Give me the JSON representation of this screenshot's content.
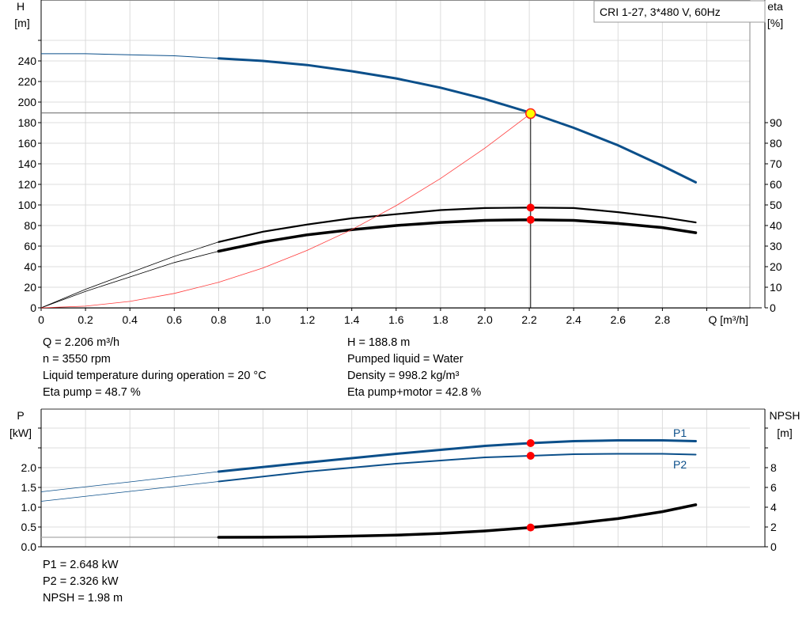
{
  "chart_data": [
    {
      "type": "line",
      "legend_box": "CRI 1-27, 3*480 V, 60Hz",
      "xlabel": "Q [m³/h]",
      "ylabel_left": "H",
      "ylabel_left_unit": "[m]",
      "ylabel_right": "eta",
      "ylabel_right_unit": "[%]",
      "xlim": [
        0,
        3.2
      ],
      "ylim_left": [
        0,
        260
      ],
      "ylim_right": [
        0,
        130
      ],
      "grid": true,
      "x_ticks": [
        "0",
        "0.2",
        "0.4",
        "0.6",
        "0.8",
        "1.0",
        "1.2",
        "1.4",
        "1.6",
        "1.8",
        "2.0",
        "2.2",
        "2.4",
        "2.6",
        "2.8"
      ],
      "y_left_ticks": [
        "0",
        "20",
        "40",
        "60",
        "80",
        "100",
        "120",
        "140",
        "160",
        "180",
        "200",
        "220",
        "240"
      ],
      "y_right_ticks": [
        "0",
        "10",
        "20",
        "30",
        "40",
        "50",
        "60",
        "70",
        "80",
        "90"
      ],
      "duty_point": {
        "Q": 2.206,
        "H": 188.8,
        "eta_pump": 48.7,
        "eta_total": 42.8
      },
      "series": [
        {
          "key": "H",
          "axis": "left",
          "color": "#0b4f8a",
          "x": [
            0,
            0.2,
            0.4,
            0.6,
            0.8,
            1.0,
            1.2,
            1.4,
            1.6,
            1.8,
            2.0,
            2.2,
            2.4,
            2.6,
            2.8,
            2.95
          ],
          "y": [
            247,
            247,
            246,
            245,
            242.5,
            240,
            236,
            230,
            223,
            214,
            203,
            190,
            175,
            158,
            138,
            122
          ]
        },
        {
          "key": "eta_pump",
          "axis": "right",
          "color": "#000000",
          "x": [
            0,
            0.2,
            0.4,
            0.6,
            0.8,
            1.0,
            1.2,
            1.4,
            1.6,
            1.8,
            2.0,
            2.2,
            2.4,
            2.6,
            2.8,
            2.95
          ],
          "y": [
            0,
            9,
            17,
            25,
            32,
            37,
            40.5,
            43.5,
            45.5,
            47.5,
            48.5,
            48.7,
            48.5,
            46.5,
            44,
            41.5
          ]
        },
        {
          "key": "eta_total",
          "axis": "right",
          "color": "#000000",
          "x": [
            0,
            0.2,
            0.4,
            0.6,
            0.8,
            1.0,
            1.2,
            1.4,
            1.6,
            1.8,
            2.0,
            2.2,
            2.4,
            2.6,
            2.8,
            2.95
          ],
          "y": [
            0,
            8,
            15,
            22,
            27.5,
            32,
            35.5,
            38,
            40,
            41.5,
            42.5,
            42.8,
            42.5,
            41,
            39,
            36.5
          ]
        },
        {
          "key": "system",
          "axis": "left",
          "color": "#ff3b3b",
          "x": [
            0,
            0.2,
            0.4,
            0.6,
            0.8,
            1.0,
            1.2,
            1.4,
            1.6,
            1.8,
            2.0,
            2.206
          ],
          "y": [
            0,
            1.6,
            6.2,
            14,
            24.8,
            38.8,
            55.9,
            76,
            99.3,
            125.7,
            155.2,
            188.8
          ]
        }
      ]
    },
    {
      "type": "line",
      "ylabel_left": "P",
      "ylabel_left_unit": "[kW]",
      "ylabel_right": "NPSH",
      "ylabel_right_unit": "[m]",
      "xlim": [
        0,
        3.2
      ],
      "ylim_left": [
        0,
        3.5
      ],
      "ylim_right": [
        0,
        14
      ],
      "grid": true,
      "y_left_ticks": [
        "0.0",
        "0.5",
        "1.0",
        "1.5",
        "2.0"
      ],
      "y_right_ticks": [
        "0",
        "2",
        "4",
        "6",
        "8"
      ],
      "series": [
        {
          "key": "P1",
          "name": "P1",
          "axis": "left",
          "color": "#0b4f8a",
          "x": [
            0,
            0.4,
            0.8,
            1.2,
            1.6,
            2.0,
            2.206,
            2.4,
            2.6,
            2.8,
            2.95
          ],
          "y": [
            1.39,
            1.64,
            1.9,
            2.13,
            2.35,
            2.55,
            2.62,
            2.67,
            2.69,
            2.69,
            2.67
          ]
        },
        {
          "key": "P2",
          "name": "P2",
          "axis": "left",
          "color": "#0b4f8a",
          "x": [
            0,
            0.4,
            0.8,
            1.2,
            1.6,
            2.0,
            2.206,
            2.4,
            2.6,
            2.8,
            2.95
          ],
          "y": [
            1.15,
            1.4,
            1.65,
            1.9,
            2.1,
            2.26,
            2.3,
            2.34,
            2.35,
            2.35,
            2.33
          ]
        },
        {
          "key": "NPSH",
          "axis": "right",
          "color": "#000000",
          "x": [
            0,
            0.8,
            1.0,
            1.2,
            1.4,
            1.6,
            1.8,
            2.0,
            2.206,
            2.4,
            2.6,
            2.8,
            2.95
          ],
          "y": [
            0.96,
            0.96,
            0.97,
            1.0,
            1.08,
            1.18,
            1.35,
            1.6,
            1.95,
            2.35,
            2.85,
            3.55,
            4.25
          ]
        }
      ]
    }
  ],
  "info_top_left": [
    "Q = 2.206 m³/h",
    "n = 3550 rpm",
    "Liquid temperature during operation = 20 °C",
    "Eta pump = 48.7 %"
  ],
  "info_top_right": [
    "H = 188.8 m",
    "Pumped liquid = Water",
    "Density = 998.2 kg/m³",
    "Eta pump+motor = 42.8 %"
  ],
  "info_bottom": [
    "P1 = 2.648 kW",
    "P2 = 2.326 kW",
    "NPSH = 1.98 m"
  ]
}
